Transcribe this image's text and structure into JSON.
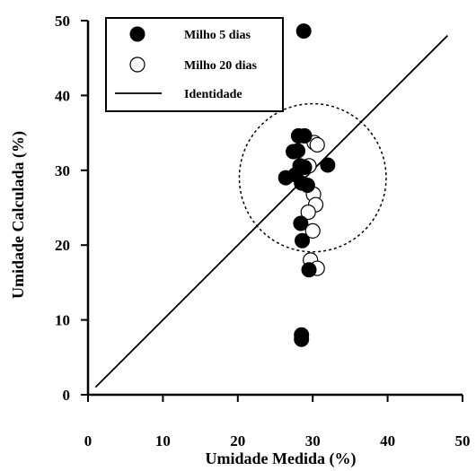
{
  "chart_data": {
    "type": "scatter",
    "xlabel": "Umidade Medida (%)",
    "ylabel": "Umidade Calculada (%)",
    "xlim": [
      0,
      50
    ],
    "ylim": [
      0,
      50
    ],
    "xticks": [
      "0",
      "10",
      "20",
      "30",
      "40",
      "50"
    ],
    "yticks": [
      "0",
      "10",
      "20",
      "30",
      "40",
      "50"
    ],
    "grid": false,
    "legend_position": "top-left",
    "series": [
      {
        "name": "Milho 5 dias",
        "marker": "filled-circle",
        "color": "#000000",
        "points": [
          [
            28.8,
            48.6
          ],
          [
            28.1,
            34.6
          ],
          [
            28.9,
            34.6
          ],
          [
            27.4,
            32.5
          ],
          [
            28.0,
            32.6
          ],
          [
            28.3,
            30.6
          ],
          [
            28.9,
            30.4
          ],
          [
            32.0,
            30.7
          ],
          [
            27.7,
            29.4
          ],
          [
            26.4,
            29.0
          ],
          [
            28.5,
            28.3
          ],
          [
            29.3,
            28.0
          ],
          [
            28.4,
            22.9
          ],
          [
            28.6,
            20.6
          ],
          [
            29.5,
            16.7
          ],
          [
            28.5,
            8.0
          ],
          [
            28.5,
            7.4
          ]
        ]
      },
      {
        "name": "Milho 20 dias",
        "marker": "open-circle",
        "color": "#000000",
        "points": [
          [
            30.2,
            33.7
          ],
          [
            30.6,
            33.4
          ],
          [
            29.5,
            30.6
          ],
          [
            30.1,
            26.8
          ],
          [
            30.4,
            25.4
          ],
          [
            29.4,
            24.4
          ],
          [
            30.0,
            21.9
          ],
          [
            29.7,
            18.0
          ],
          [
            30.6,
            16.9
          ]
        ]
      },
      {
        "name": "Identidade",
        "marker": "line",
        "color": "#000000",
        "points": [
          [
            1.0,
            1.0
          ],
          [
            48.0,
            48.0
          ]
        ]
      }
    ],
    "annotation": {
      "shape": "dashed-circle",
      "center": [
        30.0,
        29.0
      ],
      "radius_x": 9.8,
      "radius_y": 9.9
    }
  }
}
